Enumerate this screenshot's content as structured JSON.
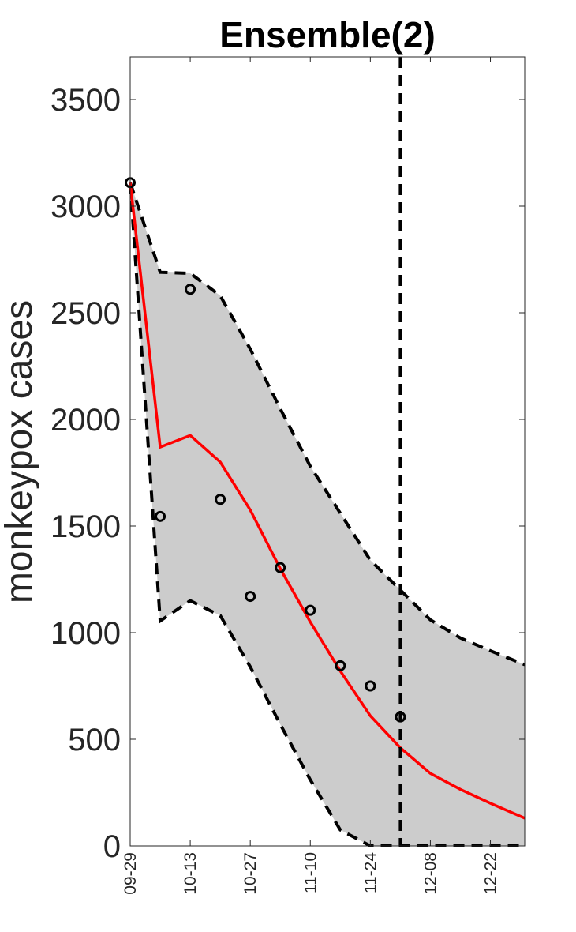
{
  "chart_data": {
    "type": "line",
    "title": "Ensemble(2)",
    "xlabel": "",
    "ylabel": "monkeypox cases",
    "ylim": [
      0,
      3700
    ],
    "yticks": [
      0,
      500,
      1000,
      1500,
      2000,
      2500,
      3000,
      3500
    ],
    "ytick_labels": [
      "0",
      "500",
      "1000",
      "1500",
      "2000",
      "2500",
      "3000",
      "3500"
    ],
    "xticks": [
      "09-29",
      "10-13",
      "10-27",
      "11-10",
      "11-24",
      "12-08",
      "12-22"
    ],
    "xlim_days": [
      0,
      92
    ],
    "x_unit": "days from 09-29",
    "forecast_start_day": 63,
    "series": [
      {
        "name": "",
        "role": "ensemble fit",
        "color": "#ff0000",
        "x": [
          0,
          7,
          14,
          21,
          28,
          35,
          42,
          49,
          56,
          63,
          70,
          77,
          84,
          92
        ],
        "y": [
          3110,
          1870,
          1925,
          1800,
          1575,
          1300,
          1050,
          820,
          610,
          460,
          340,
          265,
          200,
          130
        ]
      },
      {
        "name": "",
        "role": "upper bound",
        "color": "#000000",
        "x": [
          0,
          7,
          14,
          21,
          28,
          35,
          42,
          49,
          56,
          63,
          70,
          77,
          84,
          92
        ],
        "y": [
          3110,
          2690,
          2685,
          2580,
          2330,
          2050,
          1780,
          1560,
          1340,
          1200,
          1060,
          975,
          915,
          850
        ]
      },
      {
        "name": "",
        "role": "lower bound",
        "color": "#000000",
        "x": [
          0,
          7,
          14,
          21,
          28,
          35,
          42,
          49,
          56,
          63,
          70,
          77,
          84,
          92
        ],
        "y": [
          3110,
          1055,
          1150,
          1080,
          840,
          570,
          310,
          75,
          0,
          0,
          0,
          0,
          0,
          0
        ]
      },
      {
        "name": "",
        "role": "observed data",
        "color": "#000000",
        "x": [
          0,
          7,
          14,
          21,
          28,
          35,
          42,
          49,
          56,
          63
        ],
        "y": [
          3110,
          1545,
          2610,
          1625,
          1170,
          1305,
          1105,
          845,
          750,
          605
        ]
      }
    ],
    "band_color": "#cccccc",
    "grid": false
  }
}
